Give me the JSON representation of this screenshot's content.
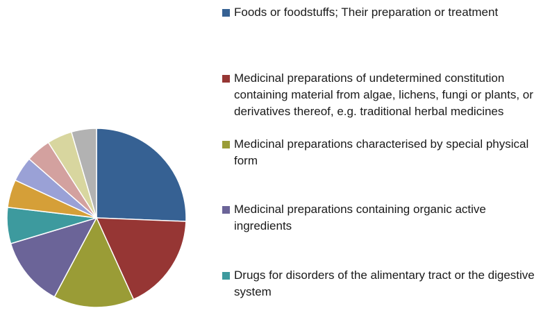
{
  "chart_data": {
    "type": "pie",
    "series": [
      {
        "name": "Foods or foodstuffs; Their preparation or treatment",
        "value": 25.5,
        "color": "#366193"
      },
      {
        "name": "Medicinal preparations of undetermined constitution containing material from algae, lichens, fungi or plants, or derivatives thereof, e.g. traditional herbal medicines",
        "value": 17.5,
        "color": "#963634"
      },
      {
        "name": "Medicinal preparations characterised by special physical form",
        "value": 14.5,
        "color": "#9a9c36"
      },
      {
        "name": "Medicinal preparations containing organic active ingredients",
        "value": 12.5,
        "color": "#6b6498"
      },
      {
        "name": "Drugs for disorders of the alimentary tract or the digestive system",
        "value": 6.5,
        "color": "#3d9a9e"
      },
      {
        "name": "",
        "value": 5,
        "color": "#d59f38"
      },
      {
        "name": "",
        "value": 4.5,
        "color": "#9aa1d6"
      },
      {
        "name": "",
        "value": 4.5,
        "color": "#d3a19f"
      },
      {
        "name": "",
        "value": 4.5,
        "color": "#d8d69f"
      },
      {
        "name": "",
        "value": 4.5,
        "color": "#b2b2b2"
      }
    ],
    "legend": "right",
    "start_angle": "12 o'clock",
    "direction": "clockwise"
  }
}
